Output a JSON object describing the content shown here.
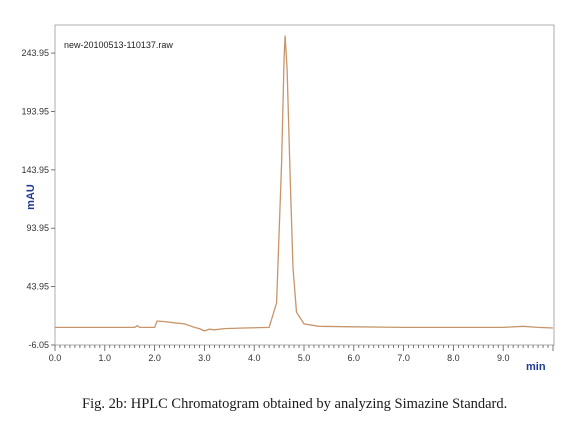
{
  "caption": "Fig. 2b: HPLC Chromatogram obtained by analyzing Simazine Standard.",
  "colors": {
    "trace": "#c8956a",
    "axis_label": "#1f3a93",
    "axis": "#555555",
    "text": "#333333"
  },
  "chart_data": {
    "type": "line",
    "title": "new-20100513-110137.raw",
    "xlabel": "min",
    "ylabel": "mAU",
    "xlim": [
      0.0,
      10.0
    ],
    "ylim": [
      -6.05,
      268
    ],
    "x_ticks": [
      0.0,
      1.0,
      2.0,
      3.0,
      4.0,
      5.0,
      6.0,
      7.0,
      8.0,
      9.0
    ],
    "x_tick_labels": [
      "0.0",
      "1.0",
      "2.0",
      "3.0",
      "4.0",
      "5.0",
      "6.0",
      "7.0",
      "8.0",
      "9.0"
    ],
    "y_ticks": [
      -6.05,
      43.95,
      93.95,
      143.95,
      193.95,
      243.95
    ],
    "y_tick_labels": [
      "-6.05",
      "43.95",
      "93.95",
      "143.95",
      "193.95",
      "243.95"
    ],
    "grid": false,
    "series": [
      {
        "x": [
          0.0,
          1.0,
          1.6,
          1.65,
          1.7,
          2.0,
          2.05,
          2.2,
          2.4,
          2.6,
          2.8,
          2.9,
          3.0,
          3.1,
          3.2,
          3.4,
          3.8,
          4.3,
          4.45,
          4.55,
          4.6,
          4.62,
          4.66,
          4.72,
          4.78,
          4.85,
          5.0,
          5.3,
          6.0,
          7.0,
          8.0,
          9.0,
          9.4,
          9.7,
          10.0
        ],
        "y": [
          9.0,
          9.0,
          9.0,
          10.5,
          9.0,
          9.0,
          14.5,
          14.0,
          13.0,
          12.0,
          9.0,
          8.0,
          6.0,
          7.5,
          7.0,
          8.0,
          8.5,
          9.0,
          30.0,
          150.0,
          240.0,
          259.0,
          230.0,
          140.0,
          60.0,
          22.0,
          12.0,
          10.0,
          9.5,
          9.0,
          9.0,
          9.0,
          10.0,
          9.0,
          8.5
        ]
      }
    ]
  }
}
